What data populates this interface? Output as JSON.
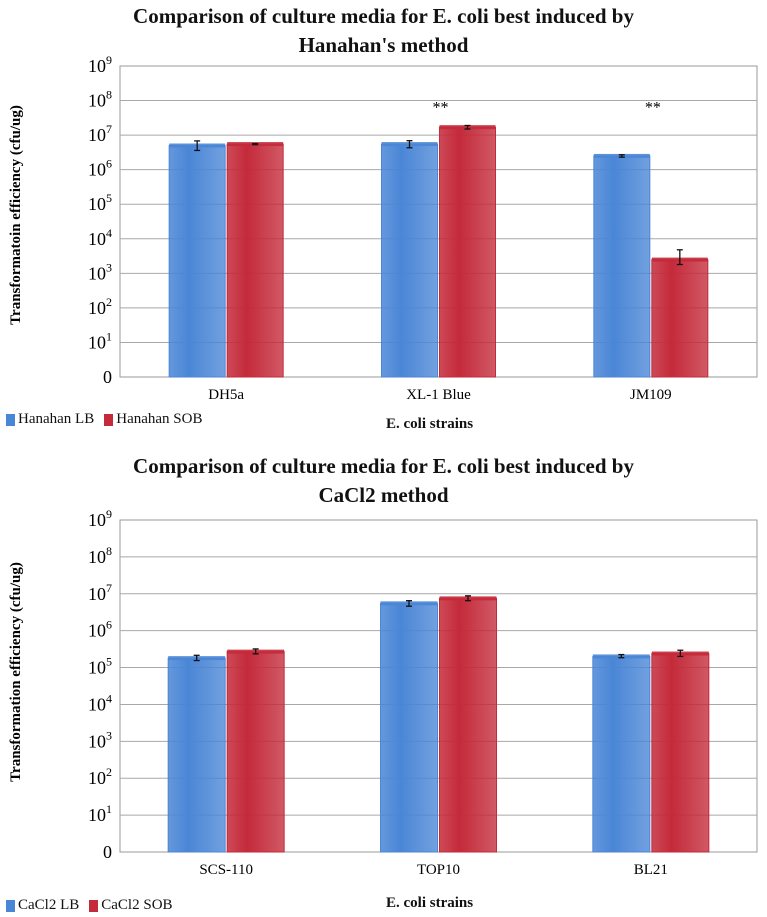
{
  "chart_data": [
    {
      "type": "bar",
      "title_line1": "Comparison of culture media for E. coli best induced by",
      "title_line2": "Hanahan's method",
      "xlabel": "E. coli strains",
      "ylabel": "Transformatoin efficiency (cfu/ug)",
      "yscale": "log",
      "ylim": [
        1,
        1000000000
      ],
      "yticks": [
        {
          "exp": "9"
        },
        {
          "exp": "8"
        },
        {
          "exp": "7"
        },
        {
          "exp": "6"
        },
        {
          "exp": "5"
        },
        {
          "exp": "4"
        },
        {
          "exp": "3"
        },
        {
          "exp": "2"
        },
        {
          "exp": "1"
        },
        {
          "label": "0"
        }
      ],
      "categories": [
        "DH5a",
        "XL-1 Blue",
        "JM109"
      ],
      "series": [
        {
          "name": "Hanahan LB",
          "color": "#4a86d6",
          "values": [
            5000000,
            5500000,
            2500000
          ],
          "errors_low": [
            3600000,
            4300000,
            2300000
          ],
          "errors_high": [
            6800000,
            6900000,
            2700000
          ]
        },
        {
          "name": "Hanahan SOB",
          "color": "#c42a3a",
          "values": [
            5500000,
            17000000,
            2500
          ],
          "errors_low": [
            5300000,
            15000000,
            1800
          ],
          "errors_high": [
            5700000,
            19000000,
            4800
          ]
        }
      ],
      "annotations": [
        {
          "category": "XL-1 Blue",
          "text": "**"
        },
        {
          "category": "JM109",
          "text": "**"
        }
      ],
      "grid": true,
      "legend_position": "bottom-left"
    },
    {
      "type": "bar",
      "title_line1": "Comparison of culture media for E. coli best induced by",
      "title_line2": "CaCl2 method",
      "xlabel": "E. coli strains",
      "ylabel": "Transformation efficiency (cfu/ug)",
      "yscale": "log",
      "ylim": [
        1,
        1000000000
      ],
      "yticks": [
        {
          "exp": "9"
        },
        {
          "exp": "8"
        },
        {
          "exp": "7"
        },
        {
          "exp": "6"
        },
        {
          "exp": "5"
        },
        {
          "exp": "4"
        },
        {
          "exp": "3"
        },
        {
          "exp": "2"
        },
        {
          "exp": "1"
        },
        {
          "label": "0"
        }
      ],
      "categories": [
        "SCS-110",
        "TOP10",
        "BL21"
      ],
      "series": [
        {
          "name": "CaCl2 LB",
          "color": "#4a86d6",
          "values": [
            180000,
            5500000,
            200000
          ],
          "errors_low": [
            155000,
            4600000,
            185000
          ],
          "errors_high": [
            215000,
            6500000,
            225000
          ]
        },
        {
          "name": "CaCl2 SOB",
          "color": "#c42a3a",
          "values": [
            270000,
            7500000,
            240000
          ],
          "errors_low": [
            235000,
            6500000,
            200000
          ],
          "errors_high": [
            320000,
            8800000,
            295000
          ]
        }
      ],
      "annotations": [],
      "grid": true,
      "legend_position": "bottom-left"
    }
  ]
}
